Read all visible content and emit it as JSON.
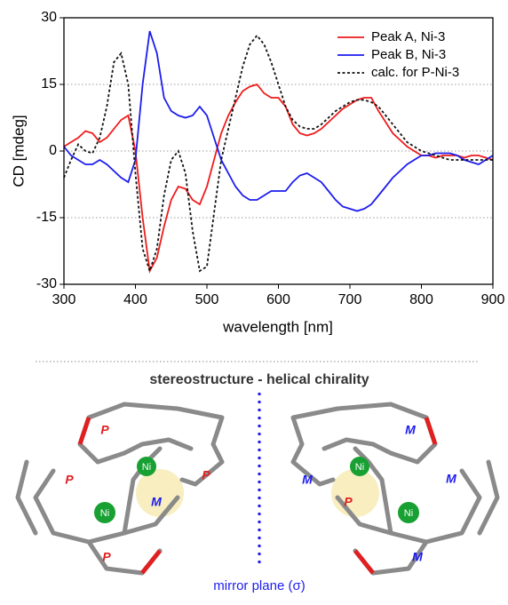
{
  "chart_data": {
    "type": "line",
    "xlabel": "wavelength [nm]",
    "ylabel": "CD [mdeg]",
    "x": [
      300,
      310,
      320,
      330,
      340,
      350,
      360,
      370,
      380,
      390,
      400,
      410,
      420,
      430,
      440,
      450,
      460,
      470,
      480,
      490,
      500,
      510,
      520,
      530,
      540,
      550,
      560,
      570,
      580,
      590,
      600,
      610,
      620,
      630,
      640,
      650,
      660,
      670,
      680,
      690,
      700,
      710,
      720,
      730,
      740,
      750,
      760,
      770,
      780,
      790,
      800,
      810,
      820,
      830,
      840,
      850,
      860,
      870,
      880,
      890,
      900
    ],
    "series": [
      {
        "name": "Peak A, Ni-3",
        "color": "#ee1c1c",
        "linestyle": "solid",
        "values": [
          1,
          2,
          3,
          4.5,
          4,
          2,
          3,
          5,
          7,
          8,
          0,
          -15,
          -27,
          -24,
          -17,
          -11,
          -8,
          -8.5,
          -11,
          -12,
          -8,
          -2,
          4,
          8,
          11,
          13.5,
          14.5,
          15,
          13,
          12,
          12,
          10,
          6,
          4,
          3.5,
          4,
          5,
          6.5,
          8,
          9.5,
          10.5,
          11.5,
          12,
          12,
          9,
          6.5,
          4,
          2.5,
          1,
          0,
          -1,
          -1,
          -1.5,
          -1,
          -1,
          -1,
          -1.5,
          -1,
          -1,
          -1.5,
          -2
        ]
      },
      {
        "name": "Peak B, Ni-3",
        "color": "#1c1cee",
        "linestyle": "solid",
        "values": [
          1,
          -1,
          -2,
          -3,
          -3,
          -2,
          -3,
          -4.5,
          -6,
          -7,
          -2,
          15,
          27,
          22,
          12,
          9,
          8,
          7.5,
          8,
          10,
          8,
          3,
          -2,
          -5,
          -8,
          -10,
          -11,
          -11,
          -10,
          -9,
          -9,
          -9,
          -7,
          -5.5,
          -5,
          -6,
          -7,
          -9,
          -11,
          -12.5,
          -13,
          -13.5,
          -13,
          -12,
          -10,
          -8,
          -6,
          -4.5,
          -3,
          -2,
          -1,
          -1,
          -0.5,
          -0.5,
          -0.5,
          -1,
          -2,
          -2.5,
          -3,
          -2,
          -1
        ]
      },
      {
        "name": "calc. for P-Ni-3",
        "color": "#111111",
        "linestyle": "dashed",
        "values": [
          -6,
          -2,
          1.5,
          0,
          -0.5,
          3,
          10,
          20,
          22,
          15,
          -5,
          -22,
          -27,
          -22,
          -10,
          -2,
          0,
          -5,
          -18,
          -27,
          -26,
          -14,
          -2,
          5,
          12,
          19,
          24,
          26,
          24,
          20,
          15,
          10,
          7,
          5.5,
          5,
          5,
          6,
          7.5,
          9,
          10,
          11,
          11.5,
          11.5,
          11,
          10,
          8,
          6,
          4,
          2,
          1,
          0,
          -0.5,
          -1,
          -1.5,
          -2,
          -2,
          -2,
          -2,
          -2,
          -2,
          -2
        ]
      }
    ],
    "xlim": [
      300,
      900
    ],
    "ylim": [
      -30,
      30
    ],
    "xticks": [
      300,
      400,
      500,
      600,
      700,
      800,
      900
    ],
    "yticks": [
      -30,
      -15,
      0,
      15,
      30
    ],
    "legend": "upper right"
  },
  "structure": {
    "title": "stereostructure - helical chirality",
    "mirror_label": "mirror plane (σ)",
    "metal": "Ni",
    "left_labels": [
      "P",
      "P",
      "P",
      "P",
      "M"
    ],
    "right_labels": [
      "M",
      "M",
      "M",
      "M",
      "P"
    ]
  }
}
